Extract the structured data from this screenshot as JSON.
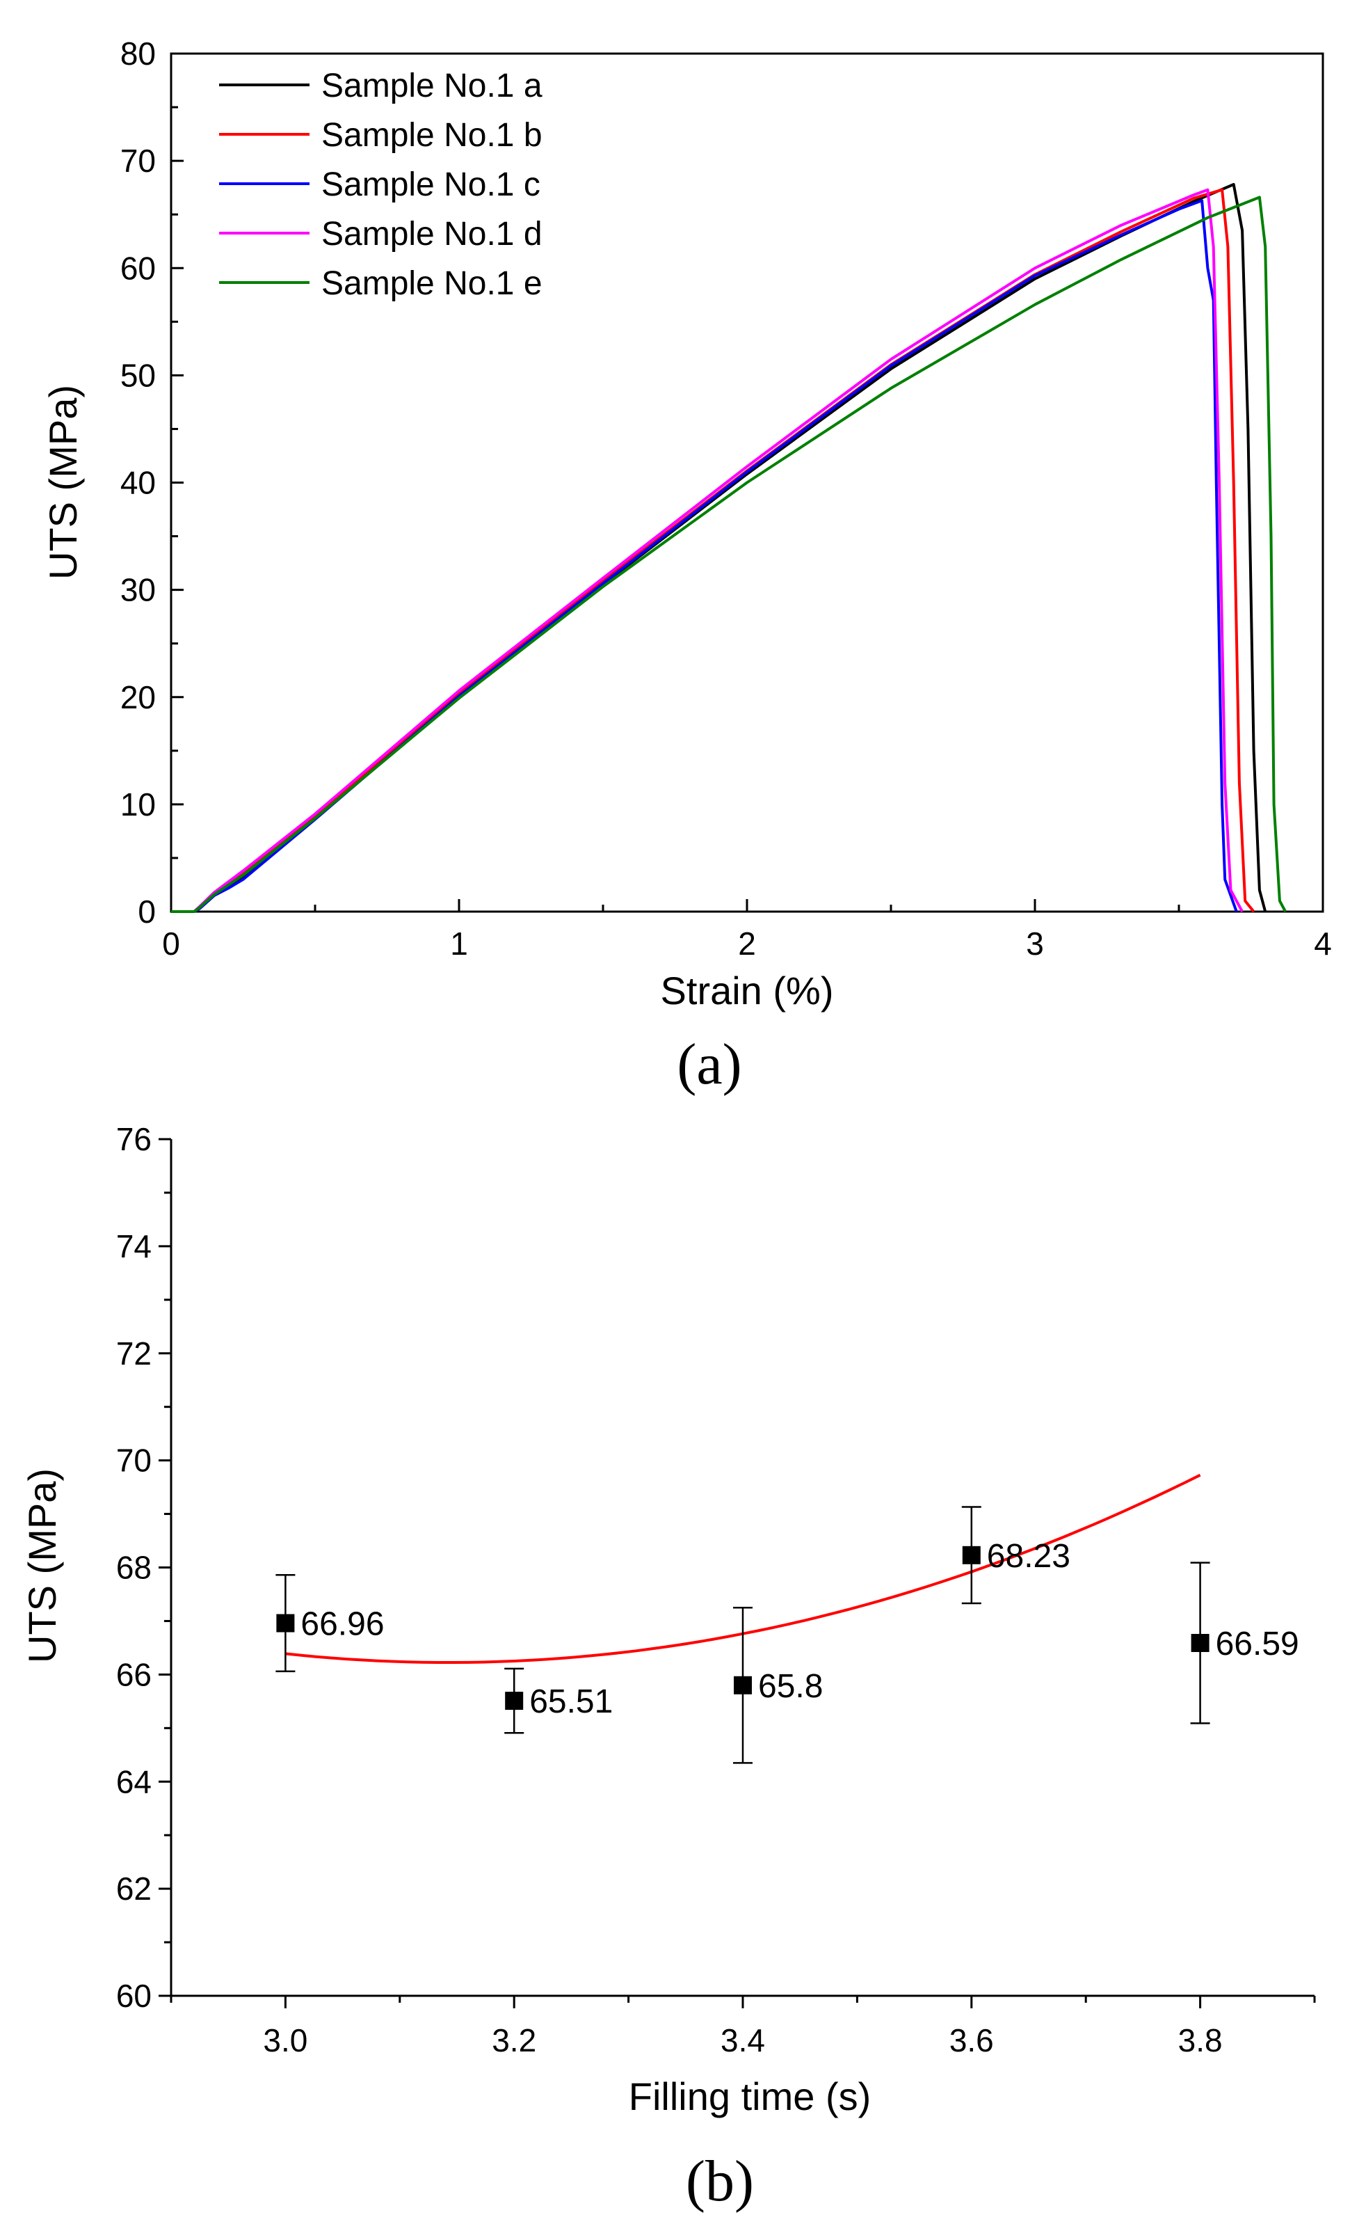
{
  "chart_data": [
    {
      "type": "line",
      "title": "",
      "caption": "(a)",
      "xlabel": "Strain (%)",
      "ylabel": "UTS (MPa)",
      "xlim": [
        0,
        4
      ],
      "ylim": [
        0,
        80
      ],
      "x_ticks": [
        0,
        1,
        2,
        3,
        4
      ],
      "y_ticks": [
        0,
        10,
        20,
        30,
        40,
        50,
        60,
        70,
        80
      ],
      "grid": false,
      "legend": "top-left",
      "series": [
        {
          "name": "Sample No.1 a",
          "color": "#000000",
          "points": [
            [
              0,
              0
            ],
            [
              0.08,
              0
            ],
            [
              0.1,
              0.4
            ],
            [
              0.15,
              1.6
            ],
            [
              0.2,
              2.4
            ],
            [
              0.25,
              3.3
            ],
            [
              0.5,
              8.7
            ],
            [
              1.0,
              20.0
            ],
            [
              1.5,
              30.5
            ],
            [
              2.0,
              40.8
            ],
            [
              2.5,
              50.6
            ],
            [
              3.0,
              59.0
            ],
            [
              3.3,
              63.0
            ],
            [
              3.55,
              66.2
            ],
            [
              3.69,
              67.8
            ],
            [
              3.72,
              63.5
            ],
            [
              3.74,
              45
            ],
            [
              3.76,
              15
            ],
            [
              3.78,
              2
            ],
            [
              3.8,
              0
            ]
          ]
        },
        {
          "name": "Sample No.1 b",
          "color": "#ff0000",
          "points": [
            [
              0,
              0
            ],
            [
              0.08,
              0
            ],
            [
              0.1,
              0.4
            ],
            [
              0.15,
              1.6
            ],
            [
              0.2,
              2.6
            ],
            [
              0.25,
              3.5
            ],
            [
              0.5,
              8.9
            ],
            [
              1.0,
              20.3
            ],
            [
              1.5,
              30.8
            ],
            [
              2.0,
              41.1
            ],
            [
              2.5,
              51.0
            ],
            [
              3.0,
              59.4
            ],
            [
              3.3,
              63.4
            ],
            [
              3.55,
              66.5
            ],
            [
              3.65,
              67.3
            ],
            [
              3.67,
              62
            ],
            [
              3.69,
              40
            ],
            [
              3.71,
              12
            ],
            [
              3.73,
              1
            ],
            [
              3.76,
              0
            ]
          ]
        },
        {
          "name": "Sample No.1 c",
          "color": "#0000ff",
          "points": [
            [
              0,
              0
            ],
            [
              0.08,
              0
            ],
            [
              0.1,
              0.3
            ],
            [
              0.15,
              1.5
            ],
            [
              0.2,
              2.2
            ],
            [
              0.25,
              3.0
            ],
            [
              0.5,
              8.6
            ],
            [
              1.0,
              20.1
            ],
            [
              1.5,
              30.6
            ],
            [
              2.0,
              41.0
            ],
            [
              2.5,
              50.9
            ],
            [
              3.0,
              59.3
            ],
            [
              3.3,
              63.1
            ],
            [
              3.5,
              65.5
            ],
            [
              3.58,
              66.3
            ],
            [
              3.6,
              60
            ],
            [
              3.62,
              57
            ],
            [
              3.63,
              40
            ],
            [
              3.65,
              10
            ],
            [
              3.66,
              3
            ],
            [
              3.7,
              0
            ]
          ]
        },
        {
          "name": "Sample No.1 d",
          "color": "#ff00ff",
          "points": [
            [
              0,
              0
            ],
            [
              0.08,
              0
            ],
            [
              0.1,
              0.5
            ],
            [
              0.15,
              1.8
            ],
            [
              0.2,
              2.8
            ],
            [
              0.25,
              3.8
            ],
            [
              0.5,
              9.1
            ],
            [
              1.0,
              20.6
            ],
            [
              1.5,
              31.1
            ],
            [
              2.0,
              41.5
            ],
            [
              2.5,
              51.5
            ],
            [
              3.0,
              60.0
            ],
            [
              3.3,
              64.0
            ],
            [
              3.55,
              66.8
            ],
            [
              3.6,
              67.3
            ],
            [
              3.62,
              62
            ],
            [
              3.64,
              40
            ],
            [
              3.66,
              12
            ],
            [
              3.68,
              2
            ],
            [
              3.72,
              0
            ]
          ]
        },
        {
          "name": "Sample No.1 e",
          "color": "#008000",
          "points": [
            [
              0,
              0
            ],
            [
              0.08,
              0
            ],
            [
              0.1,
              0.4
            ],
            [
              0.15,
              1.6
            ],
            [
              0.2,
              2.5
            ],
            [
              0.25,
              3.4
            ],
            [
              0.5,
              8.7
            ],
            [
              1.0,
              19.9
            ],
            [
              1.5,
              30.3
            ],
            [
              2.0,
              40.0
            ],
            [
              2.5,
              48.8
            ],
            [
              3.0,
              56.6
            ],
            [
              3.3,
              60.8
            ],
            [
              3.6,
              64.7
            ],
            [
              3.78,
              66.6
            ],
            [
              3.8,
              62
            ],
            [
              3.82,
              35
            ],
            [
              3.83,
              10
            ],
            [
              3.85,
              1
            ],
            [
              3.87,
              0
            ]
          ]
        }
      ]
    },
    {
      "type": "scatter",
      "title": "",
      "caption": "(b)",
      "xlabel": "Filling time (s)",
      "ylabel": "UTS (MPa)",
      "xlim": [
        2.9,
        3.9
      ],
      "ylim": [
        60,
        76
      ],
      "x_ticks": [
        3.0,
        3.2,
        3.4,
        3.6,
        3.8
      ],
      "x_tick_labels": [
        "3.0",
        "3.2",
        "3.4",
        "3.6",
        "3.8"
      ],
      "y_ticks": [
        60,
        62,
        64,
        66,
        68,
        70,
        72,
        74,
        76
      ],
      "grid": false,
      "x": [
        3.0,
        3.2,
        3.4,
        3.6,
        3.8
      ],
      "values": [
        66.96,
        65.51,
        65.8,
        68.23,
        66.59
      ],
      "data_labels": [
        "66.96",
        "65.51",
        "65.8",
        "68.23",
        "66.59"
      ],
      "error": [
        0.9,
        0.6,
        1.45,
        0.9,
        1.5
      ],
      "marker_color": "#000000",
      "fit": {
        "color": "#ff0000",
        "x_range": [
          3.0,
          3.8
        ],
        "coeffs": [
          66.39,
          -2.31,
          8.1
        ]
      }
    }
  ]
}
